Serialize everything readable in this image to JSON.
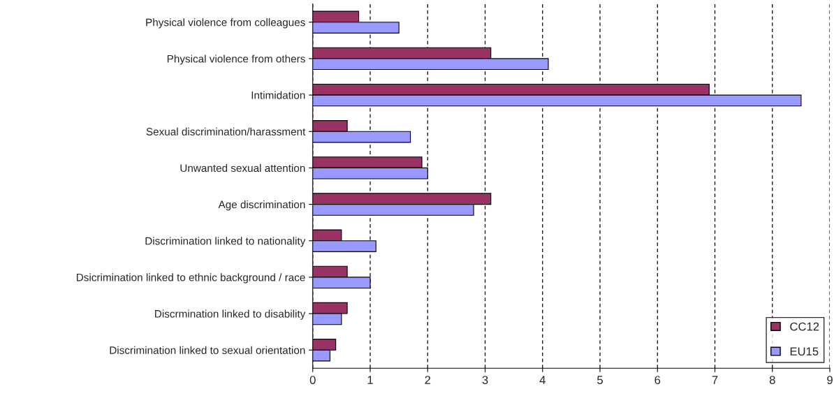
{
  "chart_data": {
    "type": "bar",
    "orientation": "horizontal",
    "categories": [
      "Physical violence from colleagues",
      "Physical violence from others",
      "Intimidation",
      "Sexual discrimination/harassment",
      "Unwanted sexual attention",
      "Age discrimination",
      "Discrimination linked to nationality",
      "Dsicrimination linked to ethnic background / race",
      "Discrmination linked to disability",
      "Discrimination linked to sexual orientation"
    ],
    "series": [
      {
        "name": "CC12",
        "color": "#993366",
        "values": [
          0.8,
          3.1,
          6.9,
          0.6,
          1.9,
          3.1,
          0.5,
          0.6,
          0.6,
          0.4
        ]
      },
      {
        "name": "EU15",
        "color": "#9999ff",
        "values": [
          1.5,
          4.1,
          8.5,
          1.7,
          2.0,
          2.8,
          1.1,
          1.0,
          0.5,
          0.3
        ]
      }
    ],
    "xlim": [
      0,
      9
    ],
    "xticks": [
      0,
      1,
      2,
      3,
      4,
      5,
      6,
      7,
      8,
      9
    ],
    "grid": "x",
    "legend": "bottom right"
  }
}
